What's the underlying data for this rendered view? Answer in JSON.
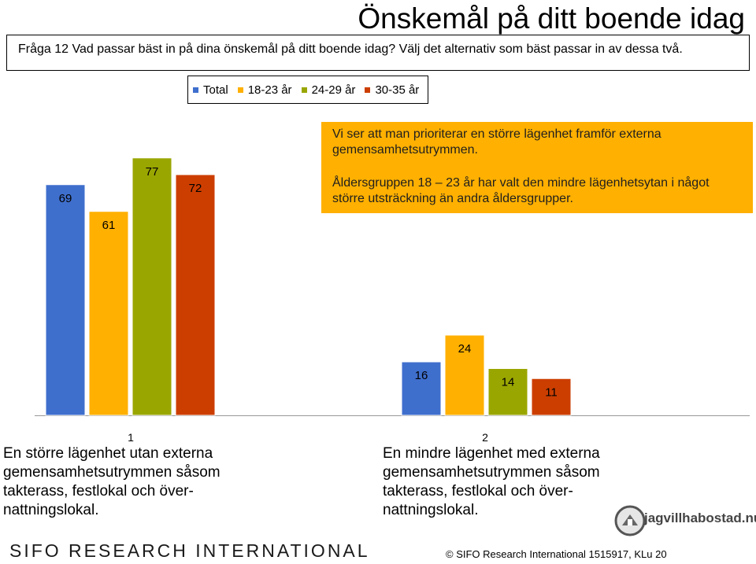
{
  "header": {
    "title": "Önskemål på ditt boende idag",
    "question": "Fråga 12 Vad passar bäst in på dina önskemål på ditt boende idag? Välj det alternativ som bäst passar in av dessa två."
  },
  "callout": {
    "paragraph1": "Vi ser att man prioriterar en större lägenhet framför externa gemensamhetsutrymmen.",
    "paragraph2": "Åldersgruppen 18 – 23 år har valt den mindre lägenhetsytan i något större utsträckning än andra åldersgrupper."
  },
  "chart_data": {
    "type": "bar",
    "title": "Önskemål på ditt boende idag",
    "categories": [
      "1",
      "2"
    ],
    "category_labels": [
      "En större lägenhet utan externa gemensamhetsutrymmen såsom takterass, festlokal och över-nattningslokal.",
      "En mindre lägenhet med externa gemensamhetsutrymmen såsom takterass, festlokal och över-nattningslokal."
    ],
    "series": [
      {
        "name": "Total",
        "color": "#3f6fcd",
        "values": [
          69,
          16
        ]
      },
      {
        "name": "18-23 år",
        "color": "#ffb000",
        "values": [
          61,
          24
        ]
      },
      {
        "name": "24-29 år",
        "color": "#9aa600",
        "values": [
          77,
          14
        ]
      },
      {
        "name": "30-35 år",
        "color": "#cc3e00",
        "values": [
          72,
          11
        ]
      }
    ],
    "ylim": [
      0,
      100
    ],
    "legend": "top",
    "grid": false
  },
  "footer": {
    "brand": "SIFO RESEARCH INTERNATIONAL",
    "copyright": "© SIFO Research International 1515917, KLu 20",
    "logo_text": "jagvillhabostad.nu"
  }
}
